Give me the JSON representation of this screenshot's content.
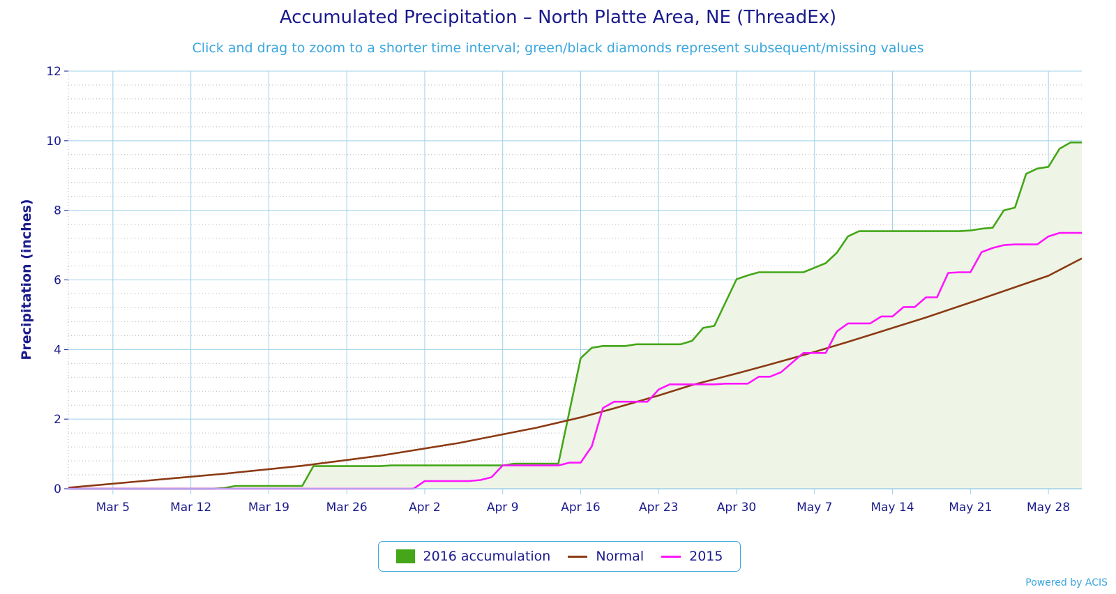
{
  "title": "Accumulated Precipitation – North Platte Area, NE (ThreadEx)",
  "subtitle": "Click and drag to zoom to a shorter time interval; green/black diamonds represent subsequent/missing values",
  "credit": "Powered by ACIS",
  "colors": {
    "accum_2016": "#44a618",
    "normal": "#8b3a14",
    "year_2015": "#ff14ff",
    "fill_2016": "#eef5e6",
    "grid": "#9cd0e6",
    "axis": "#1a1a8c"
  },
  "chart_data": {
    "type": "line",
    "title": "Accumulated Precipitation – North Platte Area, NE (ThreadEx)",
    "ylabel": "Precipitation (inches)",
    "xlabel": "",
    "ylim": [
      0,
      12
    ],
    "yticks": [
      0,
      2,
      4,
      6,
      8,
      10,
      12
    ],
    "xlim": [
      "Mar 1",
      "May 31"
    ],
    "xticks": [
      {
        "label": "Mar 5",
        "day": 4
      },
      {
        "label": "Mar 12",
        "day": 11
      },
      {
        "label": "Mar 19",
        "day": 18
      },
      {
        "label": "Mar 26",
        "day": 25
      },
      {
        "label": "Apr 2",
        "day": 32
      },
      {
        "label": "Apr 9",
        "day": 39
      },
      {
        "label": "Apr 16",
        "day": 46
      },
      {
        "label": "Apr 23",
        "day": 53
      },
      {
        "label": "Apr 30",
        "day": 60
      },
      {
        "label": "May 7",
        "day": 67
      },
      {
        "label": "May 14",
        "day": 74
      },
      {
        "label": "May 21",
        "day": 81
      },
      {
        "label": "May 28",
        "day": 88
      }
    ],
    "grid": true,
    "legend": "bottom",
    "series": [
      {
        "name": "2016 accumulation",
        "style": "area",
        "points": [
          [
            0,
            0
          ],
          [
            13,
            0
          ],
          [
            14,
            0.02
          ],
          [
            15,
            0.08
          ],
          [
            21,
            0.08
          ],
          [
            22,
            0.65
          ],
          [
            28,
            0.65
          ],
          [
            29,
            0.67
          ],
          [
            39,
            0.67
          ],
          [
            40,
            0.72
          ],
          [
            44,
            0.72
          ],
          [
            46,
            3.75
          ],
          [
            47,
            4.05
          ],
          [
            48,
            4.1
          ],
          [
            50,
            4.1
          ],
          [
            51,
            4.15
          ],
          [
            55,
            4.15
          ],
          [
            56,
            4.25
          ],
          [
            57,
            4.62
          ],
          [
            58,
            4.68
          ],
          [
            60,
            6.02
          ],
          [
            61,
            6.13
          ],
          [
            62,
            6.22
          ],
          [
            66,
            6.22
          ],
          [
            68,
            6.48
          ],
          [
            69,
            6.78
          ],
          [
            70,
            7.25
          ],
          [
            71,
            7.4
          ],
          [
            80,
            7.4
          ],
          [
            81,
            7.42
          ],
          [
            82,
            7.47
          ],
          [
            83,
            7.5
          ],
          [
            84,
            8.0
          ],
          [
            85,
            8.08
          ],
          [
            86,
            9.05
          ],
          [
            87,
            9.2
          ],
          [
            88,
            9.25
          ],
          [
            89,
            9.77
          ],
          [
            90,
            9.95
          ],
          [
            91,
            9.95
          ]
        ]
      },
      {
        "name": "Normal",
        "style": "line",
        "points": [
          [
            0,
            0.03
          ],
          [
            7,
            0.23
          ],
          [
            14,
            0.43
          ],
          [
            21,
            0.66
          ],
          [
            28,
            0.95
          ],
          [
            35,
            1.31
          ],
          [
            42,
            1.75
          ],
          [
            46,
            2.05
          ],
          [
            49,
            2.31
          ],
          [
            53,
            2.68
          ],
          [
            56,
            2.98
          ],
          [
            60,
            3.31
          ],
          [
            63,
            3.57
          ],
          [
            67,
            3.93
          ],
          [
            70,
            4.22
          ],
          [
            74,
            4.62
          ],
          [
            77,
            4.92
          ],
          [
            81,
            5.35
          ],
          [
            84,
            5.68
          ],
          [
            88,
            6.12
          ],
          [
            91,
            6.62
          ]
        ]
      },
      {
        "name": "2015",
        "style": "line",
        "points": [
          [
            0,
            0
          ],
          [
            31,
            0
          ],
          [
            32,
            0.22
          ],
          [
            36,
            0.22
          ],
          [
            37,
            0.25
          ],
          [
            38,
            0.33
          ],
          [
            39,
            0.67
          ],
          [
            44,
            0.67
          ],
          [
            45,
            0.75
          ],
          [
            46,
            0.75
          ],
          [
            47,
            1.22
          ],
          [
            48,
            2.32
          ],
          [
            49,
            2.5
          ],
          [
            51,
            2.5
          ],
          [
            52,
            2.5
          ],
          [
            53,
            2.85
          ],
          [
            54,
            3.0
          ],
          [
            58,
            3.0
          ],
          [
            59,
            3.02
          ],
          [
            60,
            3.02
          ],
          [
            61,
            3.02
          ],
          [
            62,
            3.22
          ],
          [
            63,
            3.22
          ],
          [
            64,
            3.35
          ],
          [
            66,
            3.9
          ],
          [
            67,
            3.9
          ],
          [
            68,
            3.9
          ],
          [
            69,
            4.52
          ],
          [
            70,
            4.75
          ],
          [
            72,
            4.75
          ],
          [
            73,
            4.95
          ],
          [
            74,
            4.95
          ],
          [
            75,
            5.22
          ],
          [
            76,
            5.22
          ],
          [
            77,
            5.5
          ],
          [
            78,
            5.5
          ],
          [
            79,
            6.2
          ],
          [
            80,
            6.22
          ],
          [
            81,
            6.22
          ],
          [
            82,
            6.8
          ],
          [
            83,
            6.92
          ],
          [
            84,
            7.0
          ],
          [
            85,
            7.02
          ],
          [
            87,
            7.02
          ],
          [
            88,
            7.25
          ],
          [
            89,
            7.35
          ],
          [
            91,
            7.35
          ]
        ]
      }
    ]
  }
}
